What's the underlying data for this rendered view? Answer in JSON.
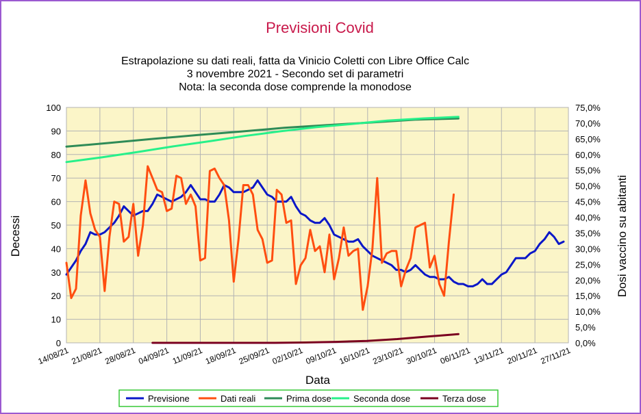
{
  "chart_data": {
    "type": "line",
    "title": "Previsioni Covid",
    "subtitle_lines": [
      "Estrapolazione su dati reali, fatta da Vinicio Coletti con Libre Office Calc",
      "3 novembre 2021 - Secondo set di parametri",
      "Nota: la seconda dose comprende la monodose"
    ],
    "xlabel": "Data",
    "ylabel": "Decessi",
    "y2label": "Dosi vaccino su abitanti",
    "ylim": [
      0,
      100
    ],
    "y2lim": [
      0,
      75
    ],
    "yticks": [
      "0",
      "10",
      "20",
      "30",
      "40",
      "50",
      "60",
      "70",
      "80",
      "90",
      "100"
    ],
    "y2ticks": [
      "0,0%",
      "5,0%",
      "10,0%",
      "15,0%",
      "20,0%",
      "25,0%",
      "30,0%",
      "35,0%",
      "40,0%",
      "45,0%",
      "50,0%",
      "55,0%",
      "60,0%",
      "65,0%",
      "70,0%",
      "75,0%"
    ],
    "xticks": [
      "14/08/21",
      "21/08/21",
      "28/08/21",
      "04/09/21",
      "11/09/21",
      "18/09/21",
      "25/09/21",
      "02/10/21",
      "09/10/21",
      "16/10/21",
      "23/10/21",
      "30/10/21",
      "06/11/21",
      "13/11/21",
      "20/11/21",
      "27/11/21"
    ],
    "grid": true,
    "legend_position": "bottom",
    "colors": {
      "Previsione": "#0a17c8",
      "Dati reali": "#ff4e10",
      "Prima dose": "#2e8b57",
      "Seconda dose": "#27f08a",
      "Terza dose": "#7a0020",
      "plot_bg": "#fbf5c8",
      "title": "#c8184a",
      "frame": "#9b59d0"
    },
    "series": [
      {
        "name": "Previsione",
        "axis": "left",
        "start_day": 0,
        "values": [
          29,
          32,
          35,
          39,
          42,
          47,
          46,
          46,
          47,
          49,
          51,
          54,
          58,
          56,
          54,
          55,
          56,
          56,
          59,
          63,
          62,
          61,
          60,
          61,
          62,
          64,
          67,
          64,
          61,
          61,
          60,
          60,
          63,
          67,
          66,
          64,
          64,
          64,
          65,
          66,
          69,
          66,
          63,
          62,
          60,
          60,
          60,
          62,
          58,
          55,
          54,
          52,
          51,
          51,
          53,
          50,
          46,
          45,
          44,
          43,
          43,
          44,
          41,
          39,
          37,
          36,
          35,
          34,
          33,
          31,
          31,
          30,
          31,
          33,
          31,
          29,
          28,
          28,
          27,
          27,
          28,
          26,
          25,
          25,
          24,
          24,
          25,
          27,
          25,
          25,
          27,
          29,
          30,
          33,
          36,
          36,
          36,
          38,
          39,
          42,
          44,
          47,
          45,
          42,
          43
        ]
      },
      {
        "name": "Dati reali",
        "axis": "left",
        "start_day": 0,
        "values": [
          34,
          19,
          23,
          54,
          69,
          55,
          48,
          45,
          22,
          45,
          60,
          59,
          43,
          45,
          59,
          37,
          50,
          75,
          70,
          65,
          64,
          56,
          57,
          71,
          70,
          59,
          63,
          58,
          35,
          36,
          73,
          74,
          70,
          67,
          52,
          26,
          44,
          67,
          67,
          63,
          48,
          44,
          34,
          35,
          65,
          63,
          51,
          52,
          25,
          33,
          36,
          48,
          39,
          41,
          30,
          46,
          27,
          36,
          49,
          37,
          39,
          40,
          14,
          24,
          40,
          70,
          34,
          38,
          39,
          39,
          24,
          31,
          36,
          49,
          50,
          51,
          32,
          37,
          25,
          20,
          43,
          63
        ]
      },
      {
        "name": "Prima dose",
        "axis": "right",
        "start_day": 0,
        "values": [
          62.5,
          63.7,
          65.0,
          66.2,
          67.3,
          68.5,
          69.4,
          70.2,
          71.1,
          71.5
        ]
      },
      {
        "name": "Seconda dose",
        "axis": "right",
        "start_day": 0,
        "values": [
          57.6,
          59.1,
          60.8,
          62.6,
          64.2,
          65.9,
          67.4,
          68.7,
          69.7,
          70.8,
          71.5,
          72.0
        ]
      },
      {
        "name": "Terza dose",
        "axis": "right",
        "start_day": 18,
        "values": [
          0.0,
          0.0,
          0.0,
          0.0,
          0.0,
          0.1,
          0.3,
          0.6,
          1.2,
          2.0,
          2.8
        ]
      }
    ]
  }
}
